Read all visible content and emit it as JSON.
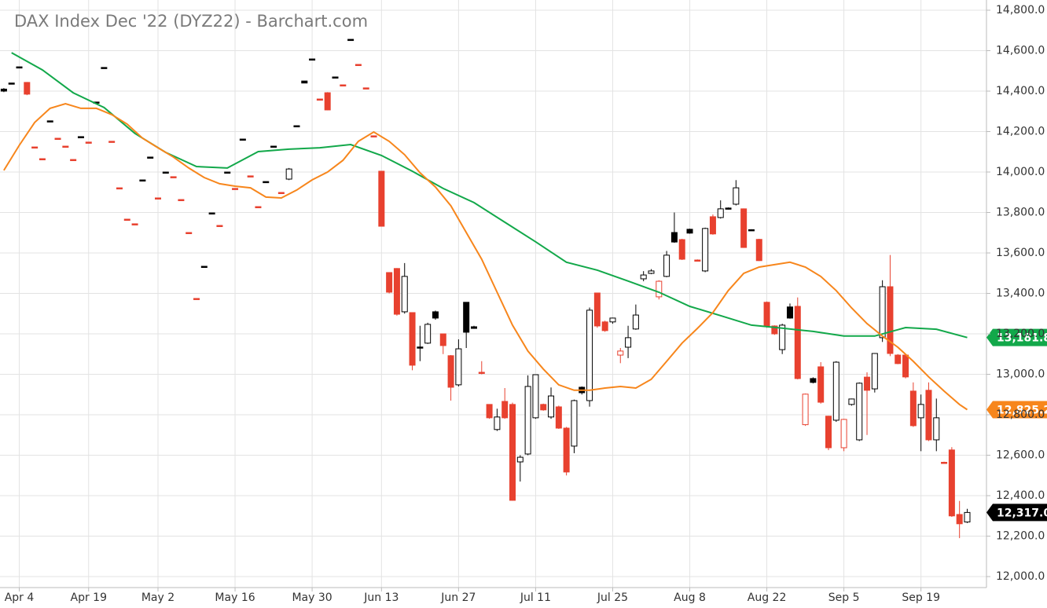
{
  "chart_data": {
    "type": "candlestick",
    "title": "DAX Index Dec '22 (DYZ22) - Barchart.com",
    "xlim": [
      -0.5,
      127.5
    ],
    "xticks": [
      {
        "value": 2,
        "label": "Apr 4"
      },
      {
        "value": 11,
        "label": "Apr 19"
      },
      {
        "value": 20,
        "label": "May 2"
      },
      {
        "value": 30,
        "label": "May 16"
      },
      {
        "value": 40,
        "label": "May 30"
      },
      {
        "value": 49,
        "label": "Jun 13"
      },
      {
        "value": 59,
        "label": "Jun 27"
      },
      {
        "value": 69,
        "label": "Jul 11"
      },
      {
        "value": 79,
        "label": "Jul 25"
      },
      {
        "value": 89,
        "label": "Aug 8"
      },
      {
        "value": 99,
        "label": "Aug 22"
      },
      {
        "value": 109,
        "label": "Sep 5"
      },
      {
        "value": 119,
        "label": "Sep 19"
      }
    ],
    "ylim": [
      12000,
      14800
    ],
    "yticks": [
      {
        "value": 12000,
        "label": "12,000.0"
      },
      {
        "value": 12200,
        "label": "12,200.0"
      },
      {
        "value": 12400,
        "label": "12,400.0"
      },
      {
        "value": 12600,
        "label": "12,600.0"
      },
      {
        "value": 12800,
        "label": "12,800.0"
      },
      {
        "value": 13000,
        "label": "13,000.0"
      },
      {
        "value": 13200,
        "label": "13,200.0"
      },
      {
        "value": 13400,
        "label": "13,400.0"
      },
      {
        "value": 13600,
        "label": "13,600.0"
      },
      {
        "value": 13800,
        "label": "13,800.0"
      },
      {
        "value": 14000,
        "label": "14,000.0"
      },
      {
        "value": 14200,
        "label": "14,200.0"
      },
      {
        "value": 14400,
        "label": "14,400.0"
      },
      {
        "value": 14600,
        "label": "14,600.0"
      },
      {
        "value": 14800,
        "label": "14,800.0"
      }
    ],
    "grid": true,
    "candles": {
      "up_color": "#000000",
      "down_color": "#e8412f",
      "last_close_label": "12,317.0",
      "open": [
        14410,
        14440,
        14520,
        14443,
        14124,
        14066,
        14253,
        14167,
        14128,
        14062,
        14175,
        14148,
        14346,
        14517,
        14152,
        13922,
        13767,
        13744,
        13961,
        14074,
        13872,
        14000,
        13977,
        13864,
        13701,
        13375,
        13534,
        13798,
        13736,
        14000,
        13919,
        14163,
        13981,
        13829,
        13953,
        14128,
        13899,
        13965,
        14229,
        14450,
        14559,
        14361,
        14392,
        14470,
        14431,
        14656,
        14532,
        14416,
        14179,
        14004,
        13503,
        13523,
        13309,
        13305,
        13135,
        13154,
        13309,
        13200,
        13092,
        12948,
        13356,
        13235,
        13010,
        12851,
        12727,
        12866,
        12851,
        12567,
        12606,
        12785,
        12851,
        12789,
        12839,
        12734,
        12645,
        12936,
        12870,
        13402,
        13259,
        13259,
        13095,
        13134,
        13224,
        13472,
        13499,
        13383,
        13484,
        13701,
        13666,
        13717,
        13565,
        13511,
        13779,
        13775,
        13822,
        13841,
        13818,
        13715,
        13667,
        13356,
        13239,
        13122,
        13333,
        13336,
        12751,
        12979,
        13037,
        12793,
        12773,
        12637,
        12851,
        12676,
        12986,
        12928,
        13181,
        13433,
        13095,
        13095,
        12917,
        12785,
        12921,
        12676,
        12565,
        12626,
        12307,
        12270
      ],
      "high": [
        14415,
        14440,
        14520,
        14445,
        14124,
        14066,
        14253,
        14167,
        14128,
        14062,
        14175,
        14148,
        14346,
        14517,
        14152,
        13922,
        13767,
        13744,
        13961,
        14074,
        13872,
        14000,
        13977,
        13864,
        13701,
        13375,
        13534,
        13798,
        13736,
        14000,
        13919,
        14163,
        13981,
        13829,
        13953,
        14128,
        13899,
        14020,
        14229,
        14450,
        14559,
        14361,
        14395,
        14470,
        14431,
        14656,
        14532,
        14416,
        14179,
        14004,
        13505,
        13525,
        13550,
        13305,
        13240,
        13255,
        13315,
        13200,
        13095,
        13173,
        13356,
        13240,
        13065,
        12852,
        12830,
        12932,
        12860,
        12600,
        12995,
        13000,
        12855,
        12935,
        12845,
        12740,
        12875,
        12940,
        13330,
        13402,
        13265,
        13280,
        13130,
        13240,
        13345,
        13510,
        13520,
        13465,
        13610,
        13800,
        13670,
        13720,
        13568,
        13725,
        13790,
        13860,
        13825,
        13960,
        13820,
        13717,
        13670,
        13360,
        13242,
        13250,
        13350,
        13380,
        12905,
        12985,
        13060,
        12795,
        13065,
        12780,
        12880,
        12960,
        13010,
        13105,
        13465,
        13590,
        13100,
        13100,
        12960,
        12900,
        12960,
        12880,
        12568,
        12640,
        12374,
        12335
      ],
      "low": [
        14395,
        14440,
        14520,
        14380,
        14124,
        14066,
        14253,
        14167,
        14128,
        14062,
        14175,
        14148,
        14346,
        14517,
        14152,
        13922,
        13767,
        13744,
        13961,
        14074,
        13872,
        14000,
        13977,
        13864,
        13701,
        13375,
        13534,
        13798,
        13736,
        14000,
        13919,
        14163,
        13981,
        13829,
        13953,
        14128,
        13899,
        13960,
        14229,
        14440,
        14559,
        14361,
        14305,
        14470,
        14431,
        14656,
        14532,
        14416,
        14179,
        13732,
        13400,
        13290,
        13300,
        13020,
        13065,
        13150,
        13270,
        13100,
        12870,
        12940,
        13130,
        13225,
        13000,
        12780,
        12720,
        12780,
        12375,
        12470,
        12600,
        12780,
        12820,
        12780,
        12730,
        12500,
        12610,
        12900,
        12840,
        13230,
        13210,
        13250,
        13055,
        13080,
        13220,
        13460,
        13495,
        13370,
        13480,
        13650,
        13565,
        13695,
        13558,
        13505,
        13690,
        13770,
        13815,
        13835,
        13625,
        13710,
        13560,
        13230,
        13195,
        13100,
        13275,
        12975,
        12745,
        12955,
        12855,
        12625,
        12765,
        12620,
        12845,
        12670,
        12700,
        12910,
        13160,
        13090,
        13050,
        12980,
        12740,
        12620,
        12670,
        12620,
        12558,
        12295,
        12190,
        12265
      ],
      "close": [
        14400,
        14440,
        14520,
        14385,
        14124,
        14066,
        14253,
        14167,
        14128,
        14062,
        14175,
        14148,
        14346,
        14517,
        14152,
        13922,
        13767,
        13744,
        13961,
        14074,
        13872,
        14000,
        13977,
        13864,
        13701,
        13375,
        13534,
        13798,
        13736,
        14000,
        13919,
        14163,
        13981,
        13829,
        13953,
        14128,
        13899,
        14015,
        14229,
        14440,
        14559,
        14361,
        14307,
        14470,
        14431,
        14656,
        14532,
        14416,
        14179,
        13732,
        13406,
        13297,
        13484,
        13045,
        13130,
        13247,
        13278,
        13142,
        12936,
        13126,
        13208,
        13227,
        13006,
        12785,
        12789,
        12785,
        12377,
        12590,
        12940,
        12998,
        12824,
        12893,
        12734,
        12517,
        12870,
        12909,
        13317,
        13239,
        13216,
        13278,
        13115,
        13181,
        13293,
        13491,
        13511,
        13460,
        13589,
        13654,
        13569,
        13698,
        13561,
        13721,
        13694,
        13818,
        13819,
        13922,
        13627,
        13712,
        13562,
        13235,
        13200,
        13243,
        13278,
        12979,
        12902,
        12960,
        12862,
        12637,
        13060,
        12777,
        12878,
        12956,
        12921,
        13103,
        13433,
        13103,
        13053,
        12987,
        12746,
        12851,
        12676,
        12785,
        12560,
        12300,
        12261,
        12317
      ]
    },
    "series": [
      {
        "color": "#12a84a",
        "tag_label": "13,181.8",
        "x": [
          1,
          5,
          9,
          13,
          17,
          21,
          25,
          29,
          33,
          37,
          41,
          45,
          49,
          53,
          57,
          61,
          65,
          69,
          73,
          77,
          81,
          85,
          89,
          93,
          97,
          101,
          105,
          109,
          113,
          117,
          121,
          125
        ],
        "values": [
          14590,
          14505,
          14392,
          14319,
          14191,
          14097,
          14027,
          14020,
          14101,
          14113,
          14120,
          14136,
          14082,
          14004,
          13919,
          13849,
          13752,
          13655,
          13554,
          13515,
          13461,
          13406,
          13336,
          13290,
          13243,
          13228,
          13212,
          13189,
          13189,
          13231,
          13223,
          13181.8
        ]
      },
      {
        "color": "#f7861c",
        "tag_label": "12,825.2",
        "x": [
          0,
          2,
          4,
          6,
          8,
          10,
          12,
          14,
          16,
          18,
          20,
          22,
          24,
          26,
          28,
          30,
          32,
          34,
          36,
          38,
          40,
          42,
          44,
          46,
          48,
          50,
          52,
          54,
          56,
          58,
          60,
          62,
          64,
          66,
          68,
          70,
          72,
          74,
          76,
          78,
          80,
          82,
          84,
          86,
          88,
          90,
          92,
          94,
          96,
          98,
          100,
          102,
          104,
          106,
          108,
          110,
          112,
          114,
          116,
          118,
          120,
          122,
          124,
          125
        ],
        "values": [
          14008,
          14132,
          14245,
          14315,
          14338,
          14315,
          14315,
          14284,
          14237,
          14167,
          14120,
          14074,
          14020,
          13973,
          13942,
          13930,
          13922,
          13876,
          13872,
          13911,
          13961,
          14000,
          14058,
          14152,
          14198,
          14152,
          14086,
          13996,
          13926,
          13833,
          13701,
          13569,
          13406,
          13243,
          13115,
          13026,
          12948,
          12921,
          12921,
          12932,
          12940,
          12932,
          12975,
          13064,
          13154,
          13227,
          13305,
          13414,
          13499,
          13530,
          13542,
          13554,
          13530,
          13484,
          13414,
          13328,
          13251,
          13189,
          13134,
          13064,
          12987,
          12917,
          12851,
          12825.2
        ]
      }
    ]
  }
}
